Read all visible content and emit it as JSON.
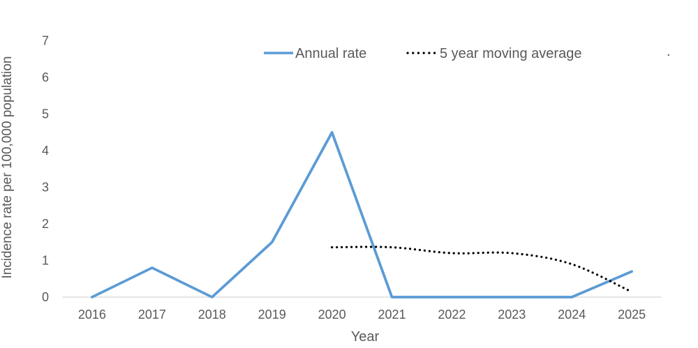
{
  "chart_data": {
    "type": "line",
    "title": "",
    "xlabel": "Year",
    "ylabel": "Incidence rate per 100,000 population",
    "categories": [
      "2016",
      "2017",
      "2018",
      "2019",
      "2020",
      "2021",
      "2022",
      "2023",
      "2024",
      "2025"
    ],
    "y_ticks": [
      0,
      1,
      2,
      3,
      4,
      5,
      6,
      7
    ],
    "ylim": [
      0,
      7
    ],
    "grid": false,
    "legend_position": "top",
    "series": [
      {
        "name": "Annual rate",
        "style": "solid",
        "color": "#5B9BD5",
        "values": [
          0,
          0.8,
          0,
          1.5,
          4.5,
          0,
          0,
          0,
          0,
          0.7
        ]
      },
      {
        "name": "5 year moving average",
        "style": "dotted",
        "color": "#000000",
        "values": [
          null,
          null,
          null,
          null,
          1.36,
          1.36,
          1.2,
          1.2,
          0.9,
          0.14
        ]
      }
    ],
    "stray_text": "."
  },
  "colors": {
    "axis_line": "#D6D6D6",
    "text": "#595959",
    "annual_rate": "#5B9BD5",
    "moving_average": "#000000"
  }
}
